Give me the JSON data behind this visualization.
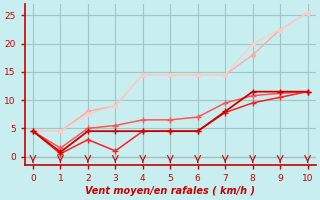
{
  "xlabel": "Vent moyen/en rafales ( km/h )",
  "xlim": [
    -0.3,
    10.3
  ],
  "ylim": [
    -1.5,
    27
  ],
  "xticks": [
    0,
    1,
    2,
    3,
    4,
    5,
    6,
    7,
    8,
    9,
    10
  ],
  "yticks": [
    0,
    5,
    10,
    15,
    20,
    25
  ],
  "bg_color": "#c8eef0",
  "grid_color": "#9ec8c8",
  "lines": [
    {
      "x": [
        0,
        1,
        2,
        3,
        4,
        5,
        6,
        7,
        8,
        9,
        10
      ],
      "y": [
        4.5,
        4.5,
        8.0,
        9.0,
        14.5,
        14.5,
        14.5,
        14.5,
        18.0,
        22.5,
        25.5
      ],
      "color": "#ffaaaa",
      "lw": 1.0,
      "marker": "o",
      "ms": 2.5,
      "zorder": 2
    },
    {
      "x": [
        0,
        1,
        2,
        3,
        4,
        5,
        6,
        7,
        8,
        9,
        10
      ],
      "y": [
        4.5,
        4.5,
        7.5,
        9.0,
        14.5,
        14.5,
        14.5,
        14.5,
        20.0,
        22.5,
        25.5
      ],
      "color": "#ffcccc",
      "lw": 1.0,
      "marker": "o",
      "ms": 2.5,
      "zorder": 2
    },
    {
      "x": [
        0,
        1,
        2,
        3,
        4,
        5,
        6,
        7,
        8,
        9,
        10
      ],
      "y": [
        4.5,
        0.8,
        4.5,
        4.5,
        4.5,
        4.5,
        4.5,
        8.0,
        11.5,
        11.5,
        11.5
      ],
      "color": "#cc0000",
      "lw": 1.3,
      "marker": "+",
      "ms": 5,
      "zorder": 4
    },
    {
      "x": [
        0,
        1,
        2,
        3,
        4,
        5,
        6,
        7,
        8,
        9,
        10
      ],
      "y": [
        4.5,
        0.5,
        3.0,
        1.0,
        4.5,
        4.5,
        4.5,
        7.8,
        9.5,
        10.5,
        11.5
      ],
      "color": "#ff2020",
      "lw": 1.1,
      "marker": "+",
      "ms": 4,
      "zorder": 3
    },
    {
      "x": [
        0,
        1,
        2,
        3,
        4,
        5,
        6,
        7,
        8,
        9,
        10
      ],
      "y": [
        4.5,
        1.5,
        5.0,
        5.5,
        6.5,
        6.5,
        7.0,
        9.5,
        10.8,
        11.2,
        11.5
      ],
      "color": "#ff5555",
      "lw": 1.1,
      "marker": "+",
      "ms": 4,
      "zorder": 3
    }
  ],
  "axis_color": "#cc0000",
  "tick_color": "#cc0000",
  "label_color": "#cc0000"
}
